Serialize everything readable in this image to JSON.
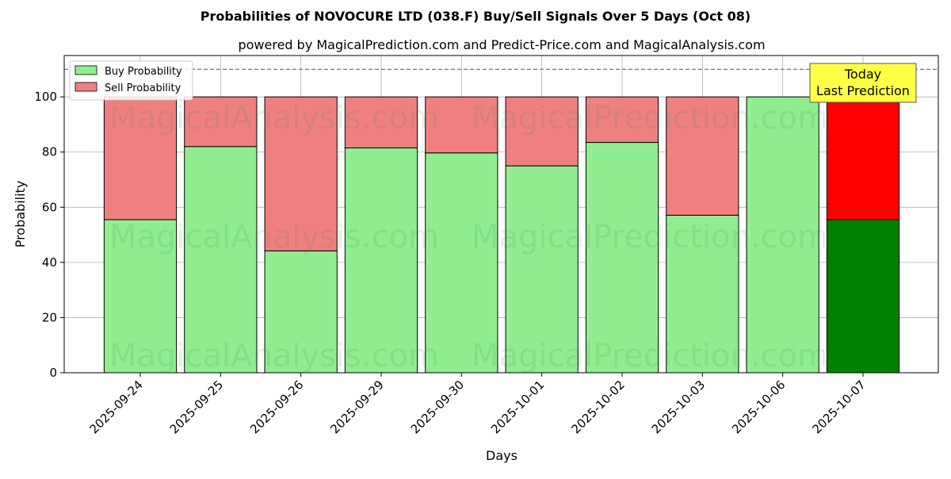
{
  "chart_data": {
    "type": "bar",
    "stacked": true,
    "title": "Probabilities of NOVOCURE LTD (038.F) Buy/Sell Signals Over 5 Days (Oct 08)",
    "subtitle": "powered by MagicalPrediction.com and Predict-Price.com and MagicalAnalysis.com",
    "xlabel": "Days",
    "ylabel": "Probability",
    "ylim": [
      0,
      115
    ],
    "yticks": [
      0,
      20,
      40,
      60,
      80,
      100
    ],
    "grid": true,
    "legend_position": "top-left",
    "reference_line": 110,
    "categories": [
      "2025-09-24",
      "2025-09-25",
      "2025-09-26",
      "2025-09-29",
      "2025-09-30",
      "2025-10-01",
      "2025-10-02",
      "2025-10-03",
      "2025-10-06",
      "2025-10-07"
    ],
    "series": [
      {
        "name": "Buy Probability",
        "color": "#90ee90",
        "highlight_color": "#008000",
        "values": [
          55.5,
          82.0,
          44.2,
          81.5,
          79.7,
          75.0,
          83.5,
          57.1,
          100.0,
          55.5
        ]
      },
      {
        "name": "Sell Probability",
        "color": "#f08080",
        "highlight_color": "#ff0000",
        "values": [
          44.5,
          18.0,
          55.8,
          18.5,
          20.3,
          25.0,
          16.5,
          42.9,
          0.0,
          44.5
        ]
      }
    ],
    "highlight_index": 9,
    "annotation": {
      "line1": "Today",
      "line2": "Last Prediction",
      "color": "#ffff44"
    },
    "watermarks": [
      "MagicalAnalysis.com",
      "MagicalPrediction.com"
    ]
  }
}
